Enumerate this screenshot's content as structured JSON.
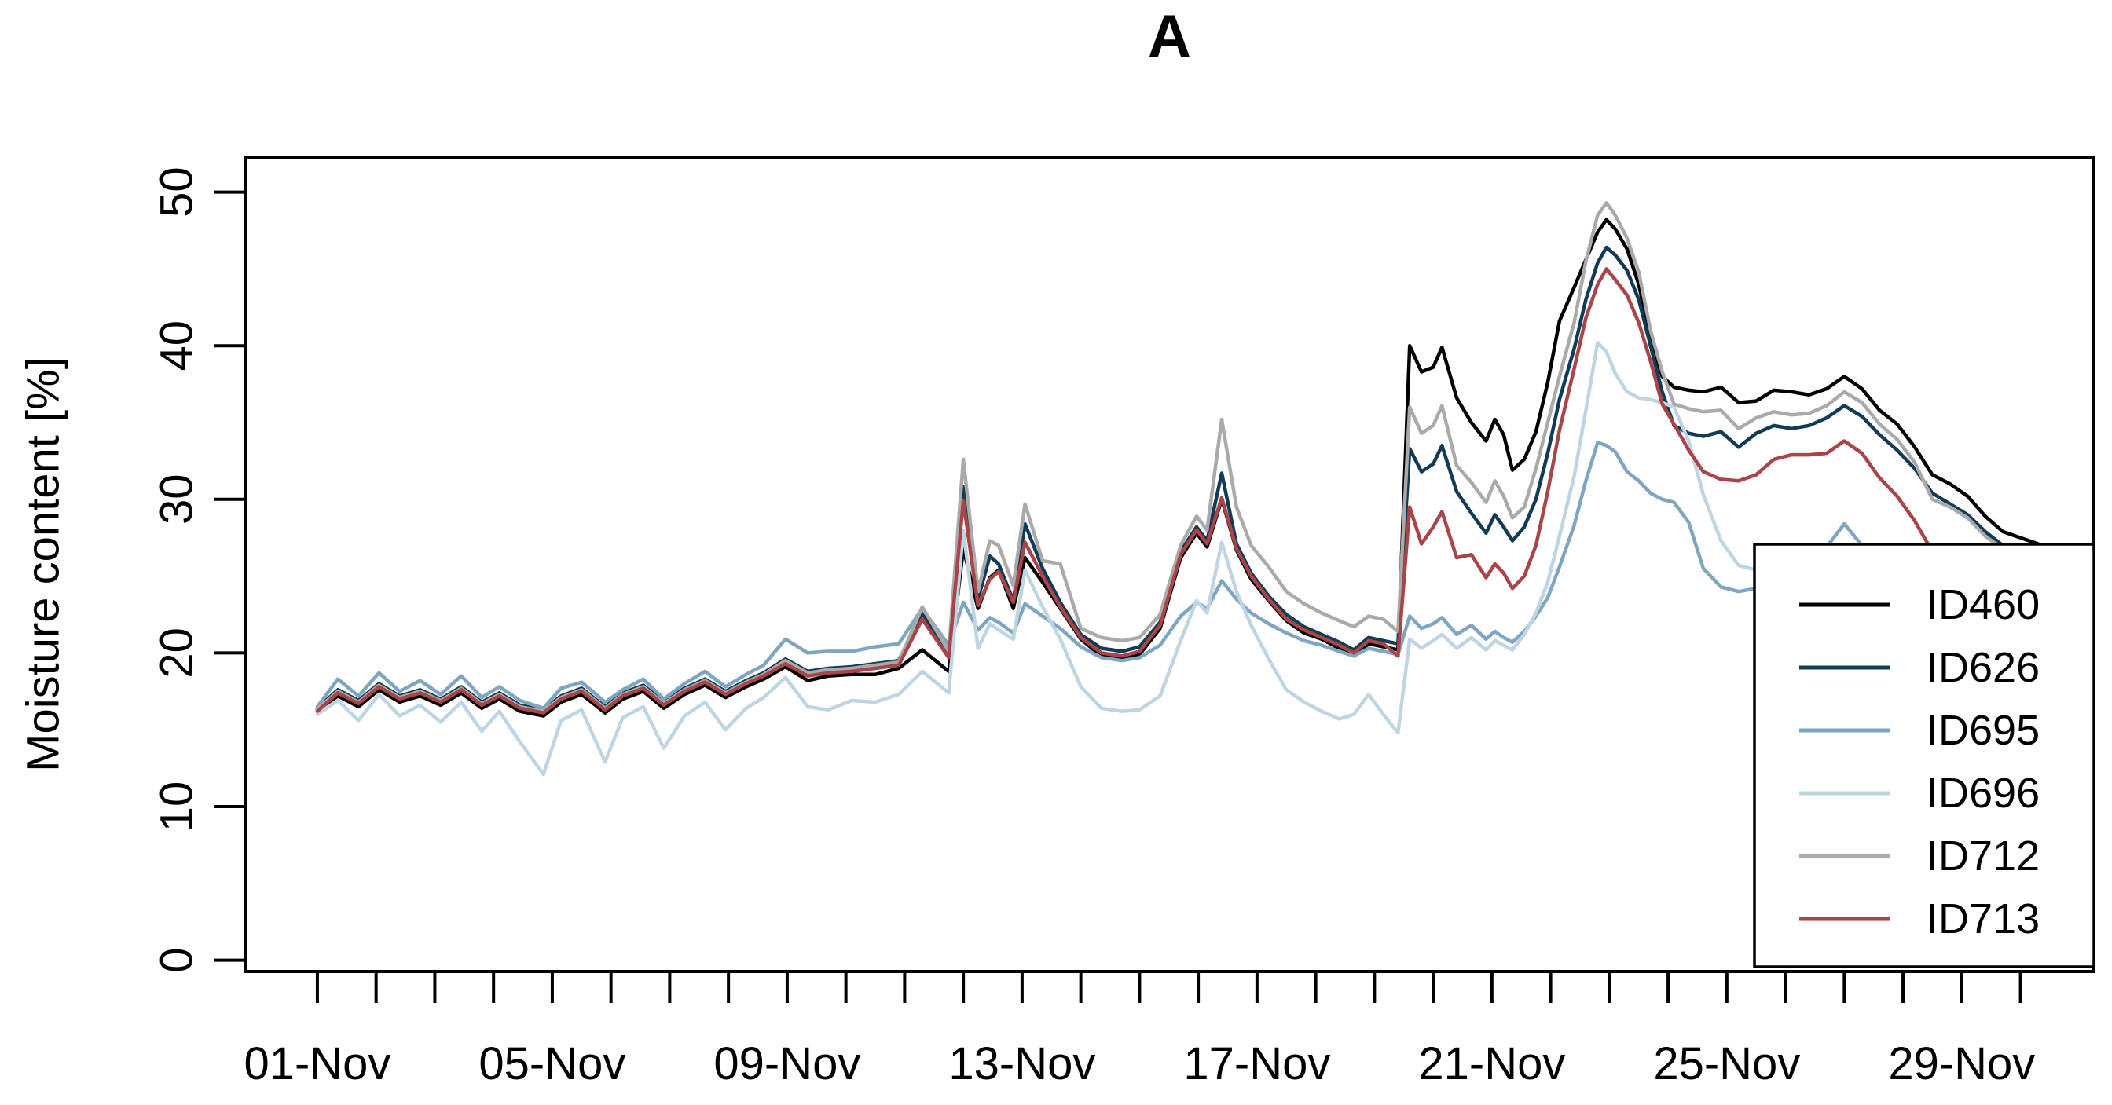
{
  "chart_data": {
    "type": "line",
    "title": "A",
    "xlabel": "",
    "ylabel": "Moisture content [%]",
    "ylim": [
      0,
      50
    ],
    "y_ticks": [
      0,
      10,
      20,
      30,
      40,
      50
    ],
    "x_range_days": [
      -0.23,
      31.25
    ],
    "x_unit": "day of November",
    "x_tick_days": [
      1,
      5,
      9,
      13,
      17,
      21,
      25,
      29
    ],
    "x_tick_labels": [
      "01-Nov",
      "05-Nov",
      "09-Nov",
      "13-Nov",
      "17-Nov",
      "21-Nov",
      "25-Nov",
      "29-Nov"
    ],
    "x_minor_tick_days": [
      1,
      2,
      3,
      4,
      5,
      6,
      7,
      8,
      9,
      10,
      11,
      12,
      13,
      14,
      15,
      16,
      17,
      18,
      19,
      20,
      21,
      22,
      23,
      24,
      25,
      26,
      27,
      28,
      29,
      30
    ],
    "grid": false,
    "legend_position": "bottomright",
    "x": [
      1.0,
      1.35,
      1.7,
      2.05,
      2.4,
      2.75,
      3.1,
      3.45,
      3.8,
      4.1,
      4.45,
      4.85,
      5.15,
      5.5,
      5.9,
      6.2,
      6.55,
      6.9,
      7.25,
      7.6,
      7.95,
      8.3,
      8.6,
      8.97,
      9.35,
      9.7,
      10.1,
      10.5,
      10.9,
      11.3,
      11.75,
      12.0,
      12.25,
      12.45,
      12.6,
      12.85,
      13.05,
      13.35,
      13.65,
      14.0,
      14.35,
      14.7,
      15.0,
      15.35,
      15.7,
      15.97,
      16.15,
      16.4,
      16.65,
      16.9,
      17.2,
      17.5,
      17.8,
      18.1,
      18.4,
      18.65,
      18.9,
      19.15,
      19.4,
      19.6,
      19.8,
      20.0,
      20.15,
      20.4,
      20.65,
      20.9,
      21.05,
      21.2,
      21.35,
      21.55,
      21.75,
      21.95,
      22.15,
      22.4,
      22.6,
      22.8,
      22.95,
      23.1,
      23.3,
      23.5,
      23.7,
      23.9,
      24.1,
      24.35,
      24.6,
      24.9,
      25.2,
      25.5,
      25.8,
      26.1,
      26.4,
      26.7,
      27.0,
      27.3,
      27.6,
      27.9,
      28.2,
      28.5,
      28.8,
      29.1,
      29.4,
      29.7,
      30.0,
      30.3,
      30.6,
      30.9
    ],
    "series": [
      {
        "name": "ID460",
        "color": "#000000",
        "values": [
          16.3,
          17.2,
          16.5,
          17.6,
          16.8,
          17.2,
          16.6,
          17.4,
          16.4,
          17.0,
          16.2,
          15.9,
          16.8,
          17.3,
          16.1,
          17.0,
          17.5,
          16.4,
          17.3,
          17.9,
          17.1,
          17.8,
          18.3,
          19.1,
          18.2,
          18.5,
          18.6,
          18.6,
          19.0,
          20.2,
          18.8,
          26.8,
          22.9,
          24.9,
          25.4,
          22.9,
          26.2,
          24.6,
          22.9,
          20.9,
          19.8,
          19.6,
          19.9,
          21.6,
          26.2,
          27.8,
          26.9,
          30.0,
          26.7,
          24.8,
          23.4,
          22.1,
          21.3,
          20.9,
          20.3,
          19.8,
          20.6,
          20.4,
          20.2,
          40.0,
          38.3,
          38.6,
          39.9,
          36.6,
          35.0,
          33.8,
          35.2,
          34.2,
          31.9,
          32.6,
          34.4,
          37.6,
          41.6,
          43.8,
          45.6,
          47.4,
          48.2,
          47.6,
          46.3,
          44.0,
          40.5,
          38.0,
          37.3,
          37.1,
          37.0,
          37.3,
          36.3,
          36.4,
          37.1,
          37.0,
          36.8,
          37.2,
          38.0,
          37.2,
          35.8,
          34.9,
          33.4,
          31.6,
          31.0,
          30.2,
          28.9,
          27.9,
          27.5,
          27.1,
          26.3,
          25.6
        ]
      },
      {
        "name": "ID626",
        "color": "#123C55",
        "values": [
          16.4,
          17.6,
          16.9,
          18.0,
          17.2,
          17.6,
          17.0,
          17.8,
          16.8,
          17.4,
          16.6,
          16.3,
          17.2,
          17.7,
          16.5,
          17.4,
          17.9,
          16.8,
          17.7,
          18.3,
          17.5,
          18.2,
          18.7,
          19.6,
          18.8,
          19.0,
          19.1,
          19.3,
          19.5,
          22.6,
          19.9,
          30.8,
          23.5,
          26.3,
          25.8,
          23.4,
          28.4,
          25.5,
          23.3,
          21.2,
          20.3,
          20.1,
          20.4,
          22.0,
          26.6,
          28.2,
          27.3,
          31.7,
          27.1,
          25.2,
          23.7,
          22.5,
          21.7,
          21.2,
          20.7,
          20.2,
          21.0,
          20.8,
          20.6,
          33.3,
          31.8,
          32.3,
          33.5,
          30.5,
          29.1,
          27.8,
          29.0,
          28.2,
          27.3,
          28.2,
          30.0,
          33.0,
          36.5,
          39.8,
          43.0,
          45.4,
          46.4,
          45.9,
          44.9,
          43.0,
          40.0,
          37.0,
          34.8,
          34.3,
          34.1,
          34.4,
          33.4,
          34.3,
          34.8,
          34.6,
          34.8,
          35.3,
          36.1,
          35.4,
          34.2,
          33.2,
          32.0,
          30.4,
          29.7,
          29.0,
          27.9,
          27.0,
          26.3,
          25.7,
          25.2,
          24.8
        ]
      },
      {
        "name": "ID695",
        "color": "#7FA6C0",
        "values": [
          16.5,
          18.3,
          17.2,
          18.7,
          17.5,
          18.2,
          17.3,
          18.5,
          17.1,
          17.8,
          16.9,
          16.4,
          17.7,
          18.1,
          16.8,
          17.6,
          18.3,
          17.0,
          18.0,
          18.8,
          17.8,
          18.6,
          19.2,
          20.9,
          20.0,
          20.1,
          20.1,
          20.4,
          20.6,
          22.9,
          20.5,
          23.3,
          21.5,
          22.3,
          22.0,
          21.3,
          23.2,
          22.4,
          21.6,
          20.4,
          19.7,
          19.5,
          19.7,
          20.5,
          22.4,
          23.3,
          22.9,
          24.7,
          23.5,
          22.6,
          21.9,
          21.3,
          20.8,
          20.5,
          20.1,
          19.8,
          20.3,
          20.1,
          19.9,
          22.4,
          21.6,
          21.9,
          22.3,
          21.2,
          21.8,
          20.9,
          21.4,
          21.0,
          20.7,
          21.4,
          22.4,
          23.6,
          25.6,
          28.3,
          31.2,
          33.7,
          33.5,
          33.1,
          31.8,
          31.2,
          30.4,
          30.0,
          29.8,
          28.5,
          25.5,
          24.3,
          24.0,
          24.2,
          24.5,
          25.0,
          25.6,
          26.9,
          28.4,
          27.0,
          26.4,
          25.9,
          25.3,
          24.8,
          24.4,
          24.0,
          23.7,
          23.4,
          23.2,
          23.0,
          22.8,
          22.6
        ]
      },
      {
        "name": "ID696",
        "color": "#BFD5E2",
        "values": [
          16.0,
          16.9,
          15.6,
          17.3,
          15.9,
          16.6,
          15.5,
          16.8,
          14.9,
          16.2,
          14.2,
          12.1,
          15.6,
          16.3,
          12.9,
          15.8,
          16.5,
          13.8,
          15.9,
          16.8,
          15.0,
          16.4,
          17.1,
          18.4,
          16.5,
          16.3,
          16.9,
          16.8,
          17.3,
          18.8,
          17.4,
          28.0,
          20.3,
          21.9,
          21.5,
          20.9,
          25.4,
          23.0,
          20.9,
          17.8,
          16.4,
          16.2,
          16.3,
          17.2,
          20.8,
          23.4,
          22.6,
          27.2,
          24.0,
          21.8,
          19.6,
          17.6,
          16.8,
          16.2,
          15.7,
          16.0,
          17.3,
          16.0,
          14.8,
          20.9,
          20.3,
          20.8,
          21.2,
          20.3,
          21.0,
          20.2,
          20.8,
          20.5,
          20.2,
          21.2,
          22.6,
          24.6,
          27.6,
          31.5,
          35.8,
          40.2,
          39.6,
          38.2,
          37.0,
          36.6,
          36.5,
          36.3,
          36.0,
          33.8,
          30.3,
          27.3,
          25.7,
          25.4,
          25.2,
          24.9,
          24.6,
          24.3,
          24.1,
          23.9,
          23.7,
          23.5,
          23.3,
          23.1,
          22.9,
          22.7,
          22.5,
          22.4,
          22.3,
          22.2,
          22.1,
          22.0
        ]
      },
      {
        "name": "ID712",
        "color": "#AAAAAA",
        "values": [
          16.35,
          17.5,
          16.8,
          17.9,
          17.1,
          17.5,
          16.9,
          17.7,
          16.7,
          17.3,
          16.5,
          16.2,
          17.1,
          17.6,
          16.4,
          17.3,
          17.8,
          16.7,
          17.6,
          18.2,
          17.4,
          18.1,
          18.6,
          19.5,
          18.7,
          18.9,
          19.0,
          19.2,
          19.4,
          23.0,
          20.1,
          32.6,
          24.0,
          27.3,
          27.0,
          24.4,
          29.7,
          26.0,
          25.8,
          21.6,
          21.0,
          20.8,
          21.0,
          22.5,
          27.0,
          28.9,
          28.0,
          35.2,
          29.5,
          27.0,
          25.6,
          24.0,
          23.2,
          22.6,
          22.1,
          21.7,
          22.4,
          22.2,
          21.4,
          36.0,
          34.3,
          34.8,
          36.1,
          32.2,
          31.1,
          29.8,
          31.2,
          30.2,
          28.8,
          29.5,
          32.0,
          35.0,
          38.0,
          41.5,
          45.5,
          48.5,
          49.3,
          48.5,
          47.0,
          44.8,
          41.0,
          38.3,
          36.2,
          35.9,
          35.7,
          35.8,
          34.6,
          35.3,
          35.7,
          35.5,
          35.6,
          36.1,
          37.0,
          36.3,
          34.9,
          33.9,
          32.4,
          30.0,
          29.5,
          28.8,
          27.6,
          26.8,
          26.2,
          25.7,
          25.3,
          24.9
        ]
      },
      {
        "name": "ID713",
        "color": "#A94548",
        "values": [
          16.2,
          17.4,
          16.7,
          17.8,
          17.0,
          17.4,
          16.8,
          17.6,
          16.6,
          17.2,
          16.4,
          16.1,
          17.0,
          17.5,
          16.3,
          17.2,
          17.7,
          16.6,
          17.5,
          18.1,
          17.3,
          18.0,
          18.5,
          19.3,
          18.5,
          18.7,
          18.8,
          19.0,
          19.2,
          22.2,
          19.7,
          29.9,
          23.1,
          24.8,
          25.3,
          23.3,
          27.2,
          25.0,
          23.0,
          21.0,
          20.0,
          19.8,
          20.1,
          21.8,
          26.4,
          28.0,
          27.1,
          30.1,
          26.8,
          25.0,
          23.5,
          22.2,
          21.5,
          21.0,
          20.5,
          20.0,
          20.8,
          20.6,
          19.8,
          29.5,
          27.1,
          28.2,
          29.2,
          26.2,
          26.4,
          24.9,
          25.8,
          25.2,
          24.2,
          25.0,
          27.0,
          30.5,
          34.5,
          38.5,
          41.8,
          44.0,
          45.0,
          44.3,
          43.3,
          41.5,
          39.0,
          36.2,
          34.9,
          33.2,
          31.8,
          31.3,
          31.2,
          31.6,
          32.6,
          32.9,
          32.9,
          33.0,
          33.8,
          33.0,
          31.4,
          30.2,
          28.6,
          26.6,
          25.6,
          24.9,
          24.3,
          23.8,
          23.4,
          23.1,
          22.9,
          22.7
        ]
      }
    ],
    "legend_entries": [
      "ID460",
      "ID626",
      "ID695",
      "ID696",
      "ID712",
      "ID713"
    ]
  }
}
